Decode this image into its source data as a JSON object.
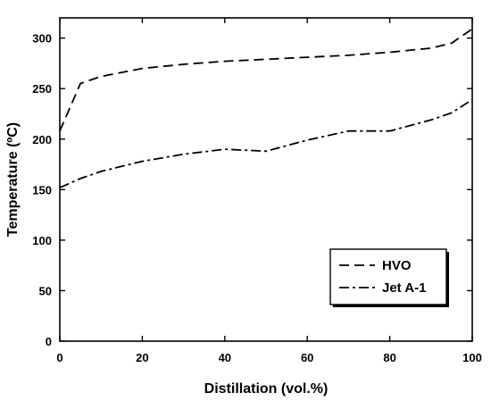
{
  "chart_data": {
    "type": "line",
    "title": "",
    "xlabel": "Distillation (vol.%)",
    "ylabel": "Temperature (ºC)",
    "xlim": [
      0,
      100
    ],
    "ylim": [
      0,
      320
    ],
    "xticks": [
      0,
      20,
      40,
      60,
      80,
      100
    ],
    "yticks": [
      0,
      50,
      100,
      150,
      200,
      250,
      300
    ],
    "grid": false,
    "legend_position": "bottom-right",
    "series": [
      {
        "name": "HVO",
        "line_style": "dashed",
        "color": "#000000",
        "x": [
          0,
          5,
          10,
          20,
          30,
          40,
          50,
          60,
          70,
          80,
          90,
          95,
          100
        ],
        "y": [
          208,
          255,
          262,
          270,
          274,
          277,
          279,
          281,
          283,
          286,
          290,
          295,
          309
        ]
      },
      {
        "name": "Jet A-1",
        "line_style": "dash-dot",
        "color": "#000000",
        "x": [
          0,
          5,
          10,
          20,
          30,
          40,
          50,
          60,
          70,
          80,
          90,
          95,
          100
        ],
        "y": [
          152,
          161,
          168,
          178,
          185,
          190,
          188,
          199,
          208,
          208,
          219,
          226,
          239
        ]
      }
    ]
  }
}
